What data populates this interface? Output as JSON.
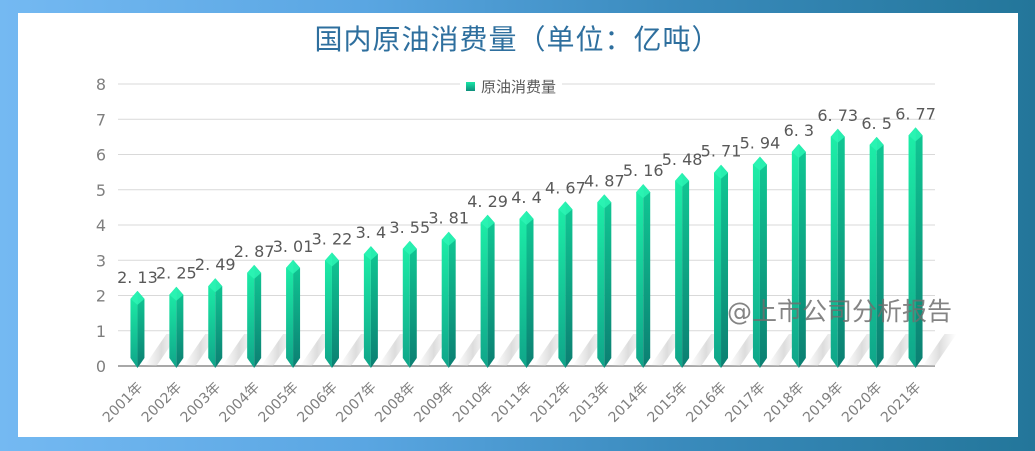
{
  "chart_data": {
    "type": "bar",
    "title": "国内原油消费量（单位：亿吨）",
    "xlabel": "",
    "ylabel": "",
    "ylim": [
      0,
      8
    ],
    "yticks": [
      0,
      1,
      2,
      3,
      4,
      5,
      6,
      7,
      8
    ],
    "grid": true,
    "legend": {
      "position": "top",
      "entries": [
        "原油消费量"
      ]
    },
    "categories": [
      "2001年",
      "2002年",
      "2003年",
      "2004年",
      "2005年",
      "2006年",
      "2007年",
      "2008年",
      "2009年",
      "2010年",
      "2011年",
      "2012年",
      "2013年",
      "2014年",
      "2015年",
      "2016年",
      "2017年",
      "2018年",
      "2019年",
      "2020年",
      "2021年"
    ],
    "series": [
      {
        "name": "原油消费量",
        "values": [
          2.13,
          2.25,
          2.49,
          2.87,
          3.01,
          3.22,
          3.4,
          3.55,
          3.81,
          4.29,
          4.4,
          4.67,
          4.87,
          5.16,
          5.48,
          5.71,
          5.94,
          6.3,
          6.73,
          6.5,
          6.77
        ],
        "labels": [
          "2. 13",
          "2. 25",
          "2. 49",
          "2. 87",
          "3. 01",
          "3. 22",
          "3. 4",
          "3. 55",
          "3. 81",
          "4. 29",
          "4. 4",
          "4. 67",
          "4. 87",
          "5. 16",
          "5. 48",
          "5. 71",
          "5. 94",
          "6. 3",
          "6. 73",
          "6. 5",
          "6. 77"
        ],
        "color": "#14c797"
      }
    ]
  },
  "header": {
    "title": "国内原油消费量（单位：亿吨）"
  },
  "legend": {
    "label": "原油消费量"
  },
  "watermark": "@上市公司分析报告",
  "colors": {
    "title": "#2e6f9e",
    "bar_top": "#1df0a8",
    "bar_bottom": "#0b7f72",
    "frame_left": "#74b9f2",
    "frame_right": "#23769a"
  }
}
